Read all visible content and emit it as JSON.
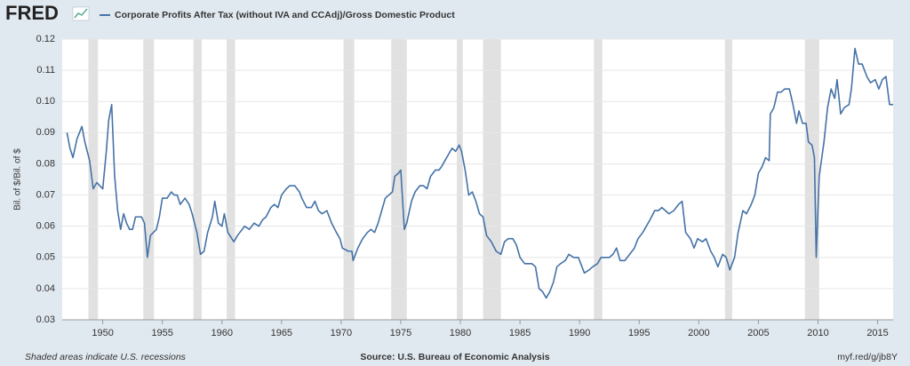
{
  "chart_data": {
    "type": "line",
    "logo": "FRED",
    "ylabel": "Bil. of $/Bil. of $",
    "footer_left": "Shaded areas indicate U.S. recessions",
    "source": "Source: U.S. Bureau of Economic Analysis",
    "link": "myf.red/g/jb8Y",
    "xlim": [
      1946.6,
      2016.3
    ],
    "ylim": [
      0.03,
      0.12
    ],
    "xticks": [
      1950,
      1955,
      1960,
      1965,
      1970,
      1975,
      1980,
      1985,
      1990,
      1995,
      2000,
      2005,
      2010,
      2015
    ],
    "yticks": [
      0.03,
      0.04,
      0.05,
      0.06,
      0.07,
      0.08,
      0.09,
      {
        "value": 0.1,
        "label": "0.10"
      },
      0.11,
      0.12
    ],
    "grid": true,
    "recession_color": "#e1e1e1",
    "recessions": [
      [
        1948.8,
        1949.6
      ],
      [
        1953.4,
        1954.3
      ],
      [
        1957.6,
        1958.3
      ],
      [
        1960.4,
        1961.1
      ],
      [
        1970.2,
        1971.1
      ],
      [
        1974.2,
        1975.5
      ],
      [
        1979.7,
        1980.2
      ],
      [
        1981.9,
        1983.4
      ],
      [
        1991.2,
        1991.9
      ],
      [
        2002.2,
        2002.8
      ],
      [
        2008.9,
        2010.1
      ]
    ],
    "x": [
      1947.0,
      1947.25,
      1947.5,
      1947.84,
      1948.25,
      1948.5,
      1948.9,
      1949.2,
      1949.5,
      1950.0,
      1950.3,
      1950.5,
      1950.75,
      1951.0,
      1951.25,
      1951.5,
      1951.75,
      1952.0,
      1952.25,
      1952.5,
      1952.75,
      1953.25,
      1953.5,
      1953.75,
      1954.0,
      1954.5,
      1954.75,
      1955.0,
      1955.4,
      1955.75,
      1956.0,
      1956.25,
      1956.5,
      1956.9,
      1957.25,
      1957.5,
      1957.9,
      1958.2,
      1958.5,
      1958.8,
      1959.2,
      1959.4,
      1959.7,
      1960.0,
      1960.2,
      1960.5,
      1961.0,
      1961.3,
      1961.7,
      1961.9,
      1962.3,
      1962.7,
      1963.1,
      1963.4,
      1963.7,
      1964.1,
      1964.4,
      1964.7,
      1965.0,
      1965.4,
      1965.7,
      1966.1,
      1966.5,
      1966.7,
      1967.1,
      1967.5,
      1967.8,
      1968.1,
      1968.4,
      1968.8,
      1969.2,
      1969.6,
      1969.9,
      1970.1,
      1970.6,
      1970.9,
      1971.0,
      1971.4,
      1971.8,
      1972.2,
      1972.5,
      1972.8,
      1973.1,
      1973.4,
      1973.7,
      1974.0,
      1974.3,
      1974.5,
      1974.8,
      1975.0,
      1975.3,
      1975.5,
      1975.9,
      1976.2,
      1976.6,
      1976.9,
      1977.2,
      1977.5,
      1977.9,
      1978.2,
      1978.4,
      1978.7,
      1979.0,
      1979.3,
      1979.6,
      1979.9,
      1980.1,
      1980.4,
      1980.7,
      1981.0,
      1981.3,
      1981.6,
      1981.9,
      1982.2,
      1982.6,
      1983.0,
      1983.4,
      1983.7,
      1984.0,
      1984.4,
      1984.7,
      1985.0,
      1985.4,
      1986.0,
      1986.3,
      1986.6,
      1986.9,
      1987.2,
      1987.5,
      1987.8,
      1988.1,
      1988.4,
      1988.8,
      1989.1,
      1989.5,
      1989.9,
      1990.1,
      1990.4,
      1990.8,
      1991.1,
      1991.5,
      1991.8,
      1992.2,
      1992.5,
      1992.8,
      1993.1,
      1993.4,
      1993.8,
      1994.2,
      1994.6,
      1994.9,
      1995.3,
      1995.6,
      1995.9,
      1996.3,
      1996.6,
      1996.9,
      1997.2,
      1997.5,
      1997.9,
      1998.3,
      1998.6,
      1998.9,
      1999.3,
      1999.6,
      1999.9,
      2000.3,
      2000.6,
      2001.0,
      2001.3,
      2001.6,
      2002.0,
      2002.3,
      2002.6,
      2003.0,
      2003.3,
      2003.7,
      2004.0,
      2004.4,
      2004.7,
      2005.0,
      2005.3,
      2005.6,
      2005.9,
      2006.0,
      2006.3,
      2006.6,
      2006.9,
      2007.2,
      2007.6,
      2007.9,
      2008.2,
      2008.4,
      2008.7,
      2009.0,
      2009.2,
      2009.5,
      2009.7,
      2009.85,
      2010.1,
      2010.5,
      2010.8,
      2011.1,
      2011.4,
      2011.6,
      2011.9,
      2012.2,
      2012.6,
      2012.8,
      2013.1,
      2013.4,
      2013.7,
      2014.1,
      2014.4,
      2014.8,
      2015.1,
      2015.4,
      2015.7,
      2016.0,
      2016.3
    ],
    "series": [
      {
        "name": "Corporate Profits After Tax (without IVA and CCAdj)/Gross Domestic Product",
        "color": "#4572a7",
        "values": [
          0.09,
          0.085,
          0.082,
          0.088,
          0.092,
          0.087,
          0.081,
          0.072,
          0.074,
          0.072,
          0.084,
          0.094,
          0.099,
          0.076,
          0.065,
          0.059,
          0.064,
          0.061,
          0.059,
          0.059,
          0.063,
          0.063,
          0.061,
          0.05,
          0.057,
          0.059,
          0.063,
          0.069,
          0.069,
          0.071,
          0.07,
          0.07,
          0.067,
          0.069,
          0.067,
          0.064,
          0.058,
          0.051,
          0.052,
          0.058,
          0.063,
          0.068,
          0.061,
          0.06,
          0.064,
          0.058,
          0.055,
          0.057,
          0.059,
          0.06,
          0.059,
          0.061,
          0.06,
          0.062,
          0.063,
          0.066,
          0.067,
          0.066,
          0.07,
          0.072,
          0.073,
          0.073,
          0.071,
          0.069,
          0.066,
          0.066,
          0.068,
          0.065,
          0.064,
          0.065,
          0.061,
          0.058,
          0.056,
          0.053,
          0.052,
          0.052,
          0.049,
          0.053,
          0.056,
          0.058,
          0.059,
          0.058,
          0.061,
          0.065,
          0.069,
          0.07,
          0.071,
          0.076,
          0.077,
          0.078,
          0.059,
          0.061,
          0.068,
          0.071,
          0.073,
          0.073,
          0.072,
          0.076,
          0.078,
          0.078,
          0.079,
          0.081,
          0.083,
          0.085,
          0.084,
          0.086,
          0.084,
          0.078,
          0.07,
          0.071,
          0.068,
          0.064,
          0.063,
          0.057,
          0.055,
          0.052,
          0.051,
          0.055,
          0.056,
          0.056,
          0.054,
          0.05,
          0.048,
          0.048,
          0.047,
          0.04,
          0.039,
          0.037,
          0.039,
          0.042,
          0.047,
          0.048,
          0.049,
          0.051,
          0.05,
          0.05,
          0.048,
          0.045,
          0.046,
          0.047,
          0.048,
          0.05,
          0.05,
          0.05,
          0.051,
          0.053,
          0.049,
          0.049,
          0.051,
          0.053,
          0.056,
          0.058,
          0.06,
          0.062,
          0.065,
          0.065,
          0.066,
          0.065,
          0.064,
          0.065,
          0.067,
          0.068,
          0.058,
          0.056,
          0.053,
          0.056,
          0.055,
          0.056,
          0.052,
          0.05,
          0.047,
          0.051,
          0.05,
          0.046,
          0.05,
          0.058,
          0.065,
          0.064,
          0.067,
          0.07,
          0.077,
          0.079,
          0.082,
          0.081,
          0.096,
          0.098,
          0.103,
          0.103,
          0.104,
          0.104,
          0.099,
          0.093,
          0.097,
          0.093,
          0.093,
          0.087,
          0.086,
          0.082,
          0.05,
          0.076,
          0.087,
          0.098,
          0.104,
          0.101,
          0.107,
          0.096,
          0.098,
          0.099,
          0.104,
          0.117,
          0.112,
          0.112,
          0.108,
          0.106,
          0.107,
          0.104,
          0.107,
          0.108,
          0.099,
          0.099
        ]
      }
    ]
  }
}
